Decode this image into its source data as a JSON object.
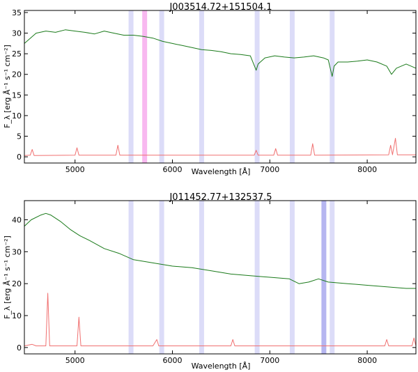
{
  "colors": {
    "data": "#1a7a1a",
    "error": "#f07070",
    "mask": "#dcdcf8",
    "mask_strong": "#b6b6f0",
    "mask_magenta": "#f8b8f0"
  },
  "chart_data": [
    {
      "type": "line",
      "title": "J003514.72+151504.1",
      "xlabel": "Wavelength [Å]",
      "ylabel": "F_λ [erg Å⁻¹ s⁻¹ cm⁻²]",
      "xlim": [
        4480,
        8500
      ],
      "ylim": [
        -1.5,
        35.5
      ],
      "xticks": [
        5000,
        6000,
        7000,
        8000
      ],
      "yticks": [
        0,
        5,
        10,
        15,
        20,
        25,
        30,
        35
      ],
      "bands": [
        {
          "x0": 5550,
          "x1": 5600,
          "kind": "mask"
        },
        {
          "x0": 5690,
          "x1": 5740,
          "kind": "magenta"
        },
        {
          "x0": 5865,
          "x1": 5915,
          "kind": "mask"
        },
        {
          "x0": 6275,
          "x1": 6325,
          "kind": "mask"
        },
        {
          "x0": 6845,
          "x1": 6895,
          "kind": "mask"
        },
        {
          "x0": 7205,
          "x1": 7255,
          "kind": "mask"
        },
        {
          "x0": 7615,
          "x1": 7665,
          "kind": "mask"
        }
      ],
      "series": [
        {
          "role": "flux",
          "x": [
            4480,
            4600,
            4700,
            4800,
            4900,
            5000,
            5100,
            5200,
            5300,
            5400,
            5500,
            5600,
            5700,
            5800,
            5900,
            6000,
            6100,
            6200,
            6300,
            6400,
            6500,
            6600,
            6700,
            6800,
            6860,
            6880,
            6950,
            7050,
            7150,
            7250,
            7350,
            7450,
            7550,
            7600,
            7640,
            7660,
            7700,
            7800,
            7900,
            8000,
            8100,
            8200,
            8250,
            8300,
            8400,
            8500
          ],
          "y": [
            27.5,
            30.0,
            30.5,
            30.2,
            30.8,
            30.5,
            30.2,
            29.8,
            30.5,
            30.0,
            29.5,
            29.5,
            29.2,
            28.8,
            28.0,
            27.5,
            27.0,
            26.5,
            26.0,
            25.8,
            25.5,
            25.0,
            24.8,
            24.5,
            21.0,
            22.5,
            24.0,
            24.5,
            24.2,
            24.0,
            24.2,
            24.5,
            24.0,
            23.5,
            19.5,
            22.0,
            23.0,
            23.0,
            23.2,
            23.5,
            23.0,
            22.0,
            20.0,
            21.5,
            22.5,
            21.5
          ]
        },
        {
          "role": "error",
          "x": [
            4480,
            4540,
            4560,
            4580,
            5000,
            5020,
            5040,
            5420,
            5440,
            5460,
            6840,
            6860,
            6880,
            7040,
            7060,
            7080,
            7420,
            7440,
            7460,
            8220,
            8240,
            8260,
            8290,
            8310,
            8500
          ],
          "y": [
            0.3,
            0.4,
            1.8,
            0.3,
            0.4,
            2.2,
            0.4,
            0.4,
            2.8,
            0.4,
            0.4,
            1.6,
            0.4,
            0.4,
            2.0,
            0.4,
            0.4,
            3.2,
            0.4,
            0.5,
            2.8,
            0.5,
            4.5,
            0.5,
            0.5
          ]
        }
      ]
    },
    {
      "type": "line",
      "title": "J011452.77+132537.5",
      "xlabel": "Wavelength [Å]",
      "ylabel": "F_λ [erg Å⁻¹ s⁻¹ cm⁻²]",
      "xlim": [
        4480,
        8500
      ],
      "ylim": [
        -2,
        46
      ],
      "xticks": [
        5000,
        6000,
        7000,
        8000
      ],
      "yticks": [
        0,
        10,
        20,
        30,
        40
      ],
      "bands": [
        {
          "x0": 5550,
          "x1": 5600,
          "kind": "mask"
        },
        {
          "x0": 5865,
          "x1": 5915,
          "kind": "mask"
        },
        {
          "x0": 6275,
          "x1": 6325,
          "kind": "mask"
        },
        {
          "x0": 6845,
          "x1": 6895,
          "kind": "mask"
        },
        {
          "x0": 7205,
          "x1": 7255,
          "kind": "mask"
        },
        {
          "x0": 7530,
          "x1": 7580,
          "kind": "strong"
        },
        {
          "x0": 7615,
          "x1": 7665,
          "kind": "mask"
        }
      ],
      "series": [
        {
          "role": "flux",
          "x": [
            4480,
            4550,
            4650,
            4700,
            4750,
            4850,
            4950,
            5050,
            5150,
            5300,
            5450,
            5600,
            5800,
            6000,
            6200,
            6400,
            6600,
            6800,
            7000,
            7200,
            7300,
            7400,
            7500,
            7600,
            7800,
            8000,
            8200,
            8400,
            8500
          ],
          "y": [
            38.0,
            40.0,
            41.5,
            42.0,
            41.5,
            39.5,
            37.0,
            35.0,
            33.5,
            31.0,
            29.5,
            27.5,
            26.5,
            25.5,
            25.0,
            24.0,
            23.0,
            22.5,
            22.0,
            21.5,
            20.0,
            20.5,
            21.5,
            20.5,
            20.0,
            19.5,
            19.0,
            18.5,
            18.5
          ]
        },
        {
          "role": "error",
          "x": [
            4480,
            4560,
            4600,
            4660,
            4700,
            4720,
            4740,
            4780,
            5020,
            5040,
            5060,
            5400,
            5800,
            5840,
            5860,
            6200,
            6600,
            6620,
            6640,
            7000,
            7400,
            7600,
            8180,
            8200,
            8220,
            8460,
            8480,
            8500
          ],
          "y": [
            0.5,
            1.0,
            0.5,
            0.5,
            0.5,
            17.0,
            0.5,
            0.5,
            0.5,
            9.5,
            0.5,
            0.5,
            0.5,
            2.5,
            0.5,
            0.5,
            0.5,
            2.5,
            0.5,
            0.5,
            0.5,
            0.5,
            0.5,
            2.5,
            0.5,
            0.5,
            3.0,
            0.5
          ]
        }
      ]
    }
  ]
}
